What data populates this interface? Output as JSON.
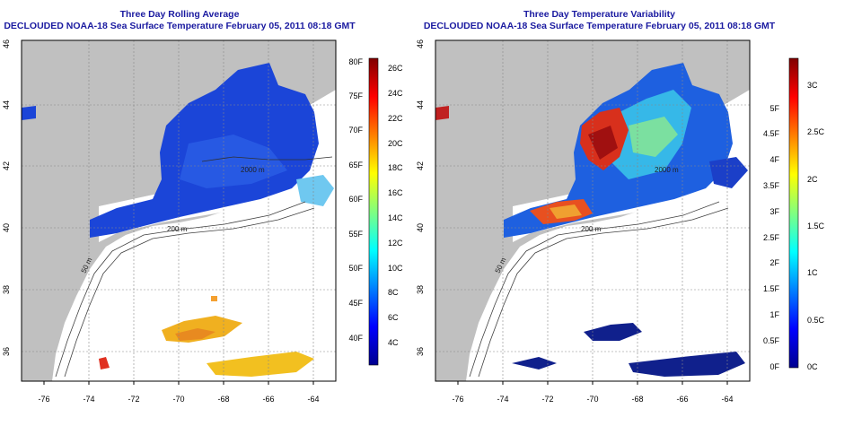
{
  "left_panel": {
    "title_line1": "Three Day Rolling Average",
    "title_line2": "DECLOUDED NOAA-18 Sea Surface Temperature February 05, 2011 08:18 GMT",
    "x_ticks": [
      "-76",
      "-74",
      "-72",
      "-70",
      "-68",
      "-66",
      "-64"
    ],
    "y_ticks": [
      "36",
      "38",
      "40",
      "42",
      "44",
      "46"
    ],
    "contour_labels": [
      "200 m",
      "2000 m",
      "50 m"
    ],
    "colorbar": {
      "fahrenheit_ticks": [
        "40F",
        "45F",
        "50F",
        "55F",
        "60F",
        "65F",
        "70F",
        "75F",
        "80F"
      ],
      "celsius_ticks": [
        "4C",
        "6C",
        "8C",
        "10C",
        "12C",
        "14C",
        "16C",
        "18C",
        "20C",
        "22C",
        "24C",
        "26C"
      ]
    }
  },
  "right_panel": {
    "title_line1": "Three Day Temperature Variability",
    "title_line2": "DECLOUDED NOAA-18 Sea Surface Temperature February 05, 2011 08:18 GMT",
    "x_ticks": [
      "-76",
      "-74",
      "-72",
      "-70",
      "-68",
      "-66",
      "-64"
    ],
    "y_ticks": [
      "36",
      "38",
      "40",
      "42",
      "44",
      "46"
    ],
    "contour_labels": [
      "200 m",
      "2000 m",
      "50 m"
    ],
    "colorbar": {
      "fahrenheit_ticks": [
        "0F",
        "0.5F",
        "1F",
        "1.5F",
        "2F",
        "2.5F",
        "3F",
        "3.5F",
        "4F",
        "4.5F",
        "5F"
      ],
      "celsius_ticks": [
        "0C",
        "0.5C",
        "1C",
        "1.5C",
        "2C",
        "2.5C",
        "3C"
      ]
    }
  },
  "colors": {
    "land": "#c0c0c0",
    "title": "#1a1aa0",
    "cold": "#1a3fd6",
    "warm": "#d62020"
  }
}
